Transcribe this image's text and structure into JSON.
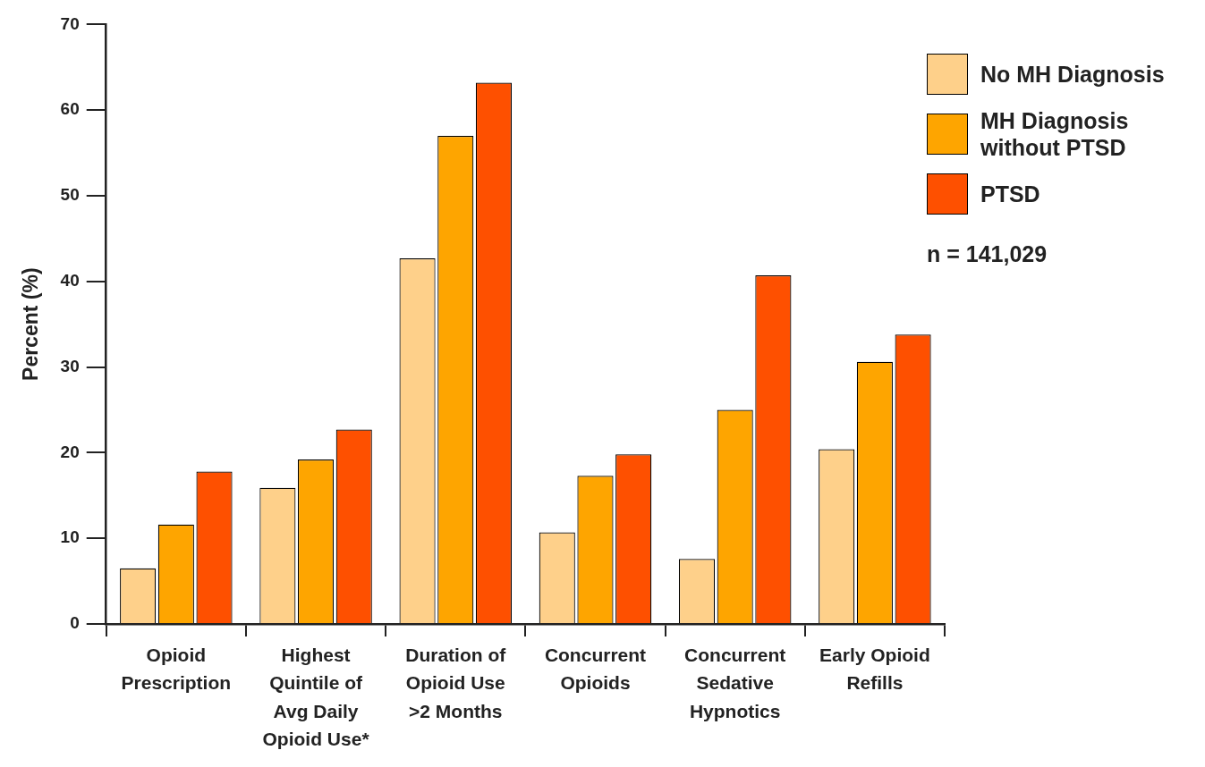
{
  "chart_data": {
    "type": "bar",
    "categories": [
      "Opioid Prescription",
      "Highest Quintile of Avg Daily Opioid Use*",
      "Duration of Opioid Use >2 Months",
      "Concurrent Opioids",
      "Concurrent Sedative Hypnotics",
      "Early Opioid Refills"
    ],
    "series": [
      {
        "name": "No MH Diagnosis",
        "color": "#fed08a",
        "values": [
          6.5,
          15.9,
          42.7,
          10.7,
          7.6,
          20.4
        ]
      },
      {
        "name": "MH Diagnosis without PTSD",
        "color": "#fea500",
        "values": [
          11.6,
          19.2,
          57.0,
          17.3,
          25.0,
          30.6
        ]
      },
      {
        "name": "PTSD",
        "color": "#fe5000",
        "values": [
          17.8,
          22.7,
          63.2,
          19.8,
          40.7,
          33.8
        ]
      }
    ],
    "ylabel": "Percent (%)",
    "ylim": [
      0,
      70
    ],
    "yticks": [
      0,
      10,
      20,
      30,
      40,
      50,
      60,
      70
    ],
    "grid": false,
    "legend": "top right",
    "annotations": [
      "n = 141,029"
    ]
  }
}
